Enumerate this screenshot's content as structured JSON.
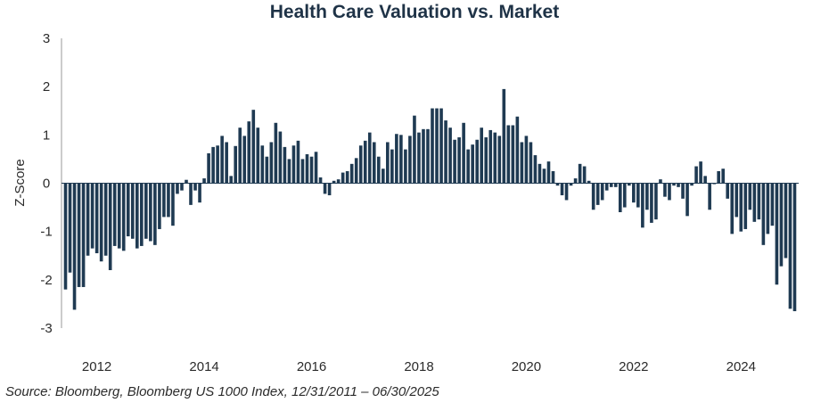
{
  "chart_data": {
    "type": "bar",
    "title": "Health Care Valuation vs. Market",
    "xlabel": "",
    "ylabel": "Z-Score",
    "ylim": [
      -3,
      3
    ],
    "y_ticks": [
      "3",
      "2",
      "1",
      "0",
      "-1",
      "-2",
      "-3"
    ],
    "x_tick_labels": [
      "2012",
      "2014",
      "2016",
      "2018",
      "2020",
      "2022",
      "2024"
    ],
    "x_range": [
      "2011-12",
      "2025-06"
    ],
    "bar_color": "#1f3a52",
    "source": "Source: Bloomberg, Bloomberg US 1000 Index, 12/31/2011 – 06/30/2025",
    "series": [
      {
        "name": "Z-Score",
        "values": [
          -2.2,
          -1.85,
          -2.62,
          -2.15,
          -2.15,
          -1.5,
          -1.35,
          -1.45,
          -1.62,
          -1.5,
          -1.8,
          -1.3,
          -1.35,
          -1.4,
          -1.1,
          -1.15,
          -1.35,
          -1.3,
          -1.15,
          -1.2,
          -1.28,
          -0.95,
          -0.7,
          -0.7,
          -0.88,
          -0.22,
          -0.15,
          0.07,
          -0.45,
          -0.15,
          -0.4,
          0.1,
          0.62,
          0.75,
          0.78,
          0.98,
          0.85,
          0.15,
          0.77,
          1.15,
          0.98,
          1.28,
          1.52,
          1.15,
          0.78,
          0.55,
          0.85,
          1.25,
          1.07,
          0.75,
          0.5,
          0.78,
          0.88,
          0.5,
          0.6,
          0.55,
          0.65,
          0.12,
          -0.22,
          -0.25,
          0.05,
          0.08,
          0.22,
          0.25,
          0.4,
          0.52,
          0.78,
          0.88,
          1.05,
          0.85,
          0.55,
          0.3,
          0.85,
          0.7,
          1.02,
          1.0,
          0.7,
          0.98,
          1.4,
          1.05,
          1.12,
          1.12,
          1.55,
          1.55,
          1.55,
          1.3,
          1.15,
          0.9,
          0.95,
          1.25,
          0.7,
          0.8,
          0.9,
          1.15,
          0.95,
          1.1,
          1.05,
          0.98,
          1.95,
          1.2,
          1.2,
          1.38,
          0.85,
          0.98,
          0.85,
          0.58,
          0.4,
          0.3,
          0.45,
          0.25,
          -0.05,
          -0.25,
          -0.35,
          -0.05,
          0.1,
          0.4,
          0.35,
          0.05,
          -0.55,
          -0.45,
          -0.35,
          -0.15,
          -0.08,
          -0.08,
          -0.6,
          -0.5,
          -0.05,
          -0.4,
          -0.5,
          -0.92,
          -0.55,
          -0.82,
          -0.75,
          0.08,
          -0.28,
          -0.35,
          -0.05,
          -0.08,
          -0.32,
          -0.68,
          -0.05,
          0.35,
          0.45,
          0.15,
          -0.55,
          -0.02,
          0.25,
          0.3,
          -0.32,
          -1.05,
          -0.7,
          -1.0,
          -0.95,
          -0.55,
          -0.8,
          -0.75,
          -1.28,
          -1.05,
          -0.88,
          -2.1,
          -1.72,
          -1.55,
          -2.6,
          -2.65
        ]
      }
    ]
  }
}
